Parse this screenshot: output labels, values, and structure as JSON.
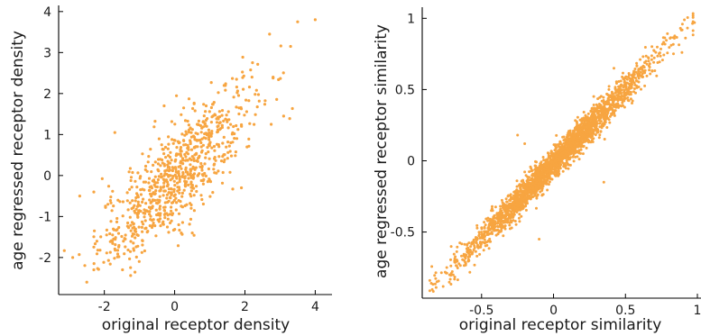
{
  "chart_data": [
    {
      "type": "scatter",
      "xlabel": "original receptor density",
      "ylabel": "age regressed receptor density",
      "xlim": [
        -3.3,
        4.4
      ],
      "ylim": [
        -2.75,
        4.15
      ],
      "xticks": [
        -2,
        0,
        2,
        4
      ],
      "yticks": [
        -2,
        -1,
        0,
        1,
        2,
        3,
        4
      ],
      "xtick_labels": [
        "-2",
        "0",
        "2",
        "4"
      ],
      "ytick_labels": [
        "-2",
        "-1",
        "0",
        "1",
        "2",
        "3",
        "4"
      ],
      "grid": false,
      "marker_color": "#F7A541",
      "approx_point_count": 800,
      "correlation_estimate": 0.83,
      "x_center": 0.05,
      "x_spread": 1.1,
      "highlighted_points": [
        {
          "x": 4.0,
          "y": 3.8
        },
        {
          "x": 3.5,
          "y": 3.75
        },
        {
          "x": 2.7,
          "y": 3.45
        },
        {
          "x": 3.3,
          "y": 3.15
        },
        {
          "x": 2.8,
          "y": 2.4
        },
        {
          "x": 2.2,
          "y": 2.4
        },
        {
          "x": 3.1,
          "y": 1.45
        },
        {
          "x": -2.9,
          "y": -2.0
        },
        {
          "x": -2.5,
          "y": -2.6
        },
        {
          "x": -2.3,
          "y": -2.3
        },
        {
          "x": -2.7,
          "y": -0.5
        },
        {
          "x": -2.3,
          "y": -0.4
        },
        {
          "x": -1.7,
          "y": 1.05
        },
        {
          "x": -0.3,
          "y": 1.7
        },
        {
          "x": 1.9,
          "y": -0.3
        },
        {
          "x": 0.5,
          "y": -1.4
        }
      ]
    },
    {
      "type": "scatter",
      "xlabel": "original receptor similarity",
      "ylabel": "age regressed receptor similarity",
      "xlim": [
        -0.9,
        1.0
      ],
      "ylim": [
        -0.92,
        1.04
      ],
      "xticks": [
        -0.5,
        0,
        0.5,
        1
      ],
      "yticks": [
        -0.5,
        0,
        0.5,
        1
      ],
      "xtick_labels": [
        "-0.5",
        "0",
        "0.5",
        "1"
      ],
      "ytick_labels": [
        "-0.5",
        "0",
        "0.5",
        "1"
      ],
      "grid": false,
      "marker_color": "#F7A541",
      "approx_point_count": 2500,
      "correlation_estimate": 0.97,
      "trend": "y ≈ 1.04 x − 0.02",
      "x_range": [
        -0.88,
        0.98
      ],
      "highlighted_points": [
        {
          "x": -0.85,
          "y": -0.86
        },
        {
          "x": 0.98,
          "y": 0.97
        },
        {
          "x": -0.25,
          "y": 0.18
        },
        {
          "x": -0.2,
          "y": 0.12
        },
        {
          "x": -0.1,
          "y": -0.55
        },
        {
          "x": 0.42,
          "y": 0.65
        },
        {
          "x": 0.35,
          "y": -0.15
        }
      ]
    }
  ]
}
